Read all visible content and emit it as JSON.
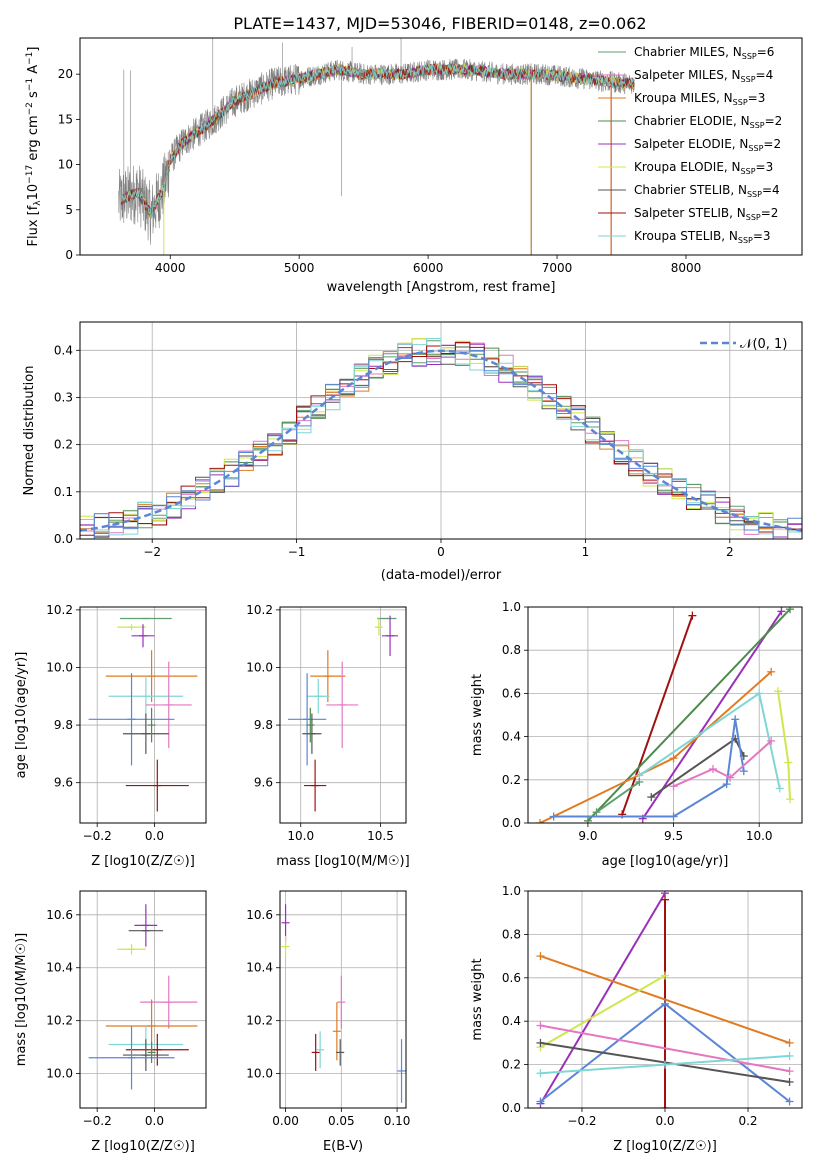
{
  "figure_title": "PLATE=1437, MJD=53046, FIBERID=0148, z=0.062",
  "colors": {
    "chabrier_miles": "#5f9e6e",
    "salpeter_miles": "#e377c2",
    "kroupa_miles": "#e07b20",
    "chabrier_elodie": "#4d8a4d",
    "salpeter_elodie": "#9b30b8",
    "kroupa_elodie": "#cde84d",
    "chabrier_stelib": "#555555",
    "salpeter_stelib": "#a01010",
    "kroupa_stelib": "#7fd6d6",
    "blue": "#5b86d6",
    "spectrum": "#808080",
    "normal_curve": "#5b86d6"
  },
  "chart_data": [
    {
      "id": "spectrum",
      "type": "line",
      "xlabel": "wavelength [Angstrom, rest frame]",
      "ylabel": "Flux [f_λ 10^-17 erg cm^-2 s^-1 A^-1]",
      "xlim": [
        3300,
        8900
      ],
      "ylim": [
        0,
        24
      ],
      "xticks": [
        4000,
        5000,
        6000,
        7000,
        8000
      ],
      "yticks": [
        0,
        5,
        10,
        15,
        20
      ],
      "grid": false,
      "legend_position": "upper-right",
      "legend": [
        {
          "name": "Chabrier MILES",
          "n": "6",
          "color_key": "chabrier_miles"
        },
        {
          "name": "Salpeter MILES",
          "n": "4",
          "color_key": "salpeter_miles"
        },
        {
          "name": "Kroupa MILES",
          "n": "3",
          "color_key": "kroupa_miles"
        },
        {
          "name": "Chabrier ELODIE",
          "n": "2",
          "color_key": "chabrier_elodie"
        },
        {
          "name": "Salpeter ELODIE",
          "n": "2",
          "color_key": "salpeter_elodie"
        },
        {
          "name": "Kroupa ELODIE",
          "n": "3",
          "color_key": "kroupa_elodie"
        },
        {
          "name": "Chabrier STELIB",
          "n": "4",
          "color_key": "chabrier_stelib"
        },
        {
          "name": "Salpeter STELIB",
          "n": "2",
          "color_key": "salpeter_stelib"
        },
        {
          "name": "Kroupa STELIB",
          "n": "3",
          "color_key": "kroupa_stelib"
        }
      ],
      "continuum": {
        "x": [
          3600,
          3750,
          3850,
          3950,
          4000,
          4100,
          4300,
          4500,
          4800,
          5000,
          5300,
          5500,
          5800,
          6000,
          6300,
          6600,
          6900,
          7200,
          7500,
          7600
        ],
        "y": [
          6,
          7,
          4.5,
          7.5,
          10.5,
          12.5,
          14.5,
          17,
          19,
          19.5,
          20.5,
          20,
          20,
          20.5,
          20.5,
          20,
          20,
          19.5,
          19,
          19
        ]
      }
    },
    {
      "id": "residuals",
      "type": "histogram",
      "xlabel": "(data-model)/error",
      "ylabel": "Normed distribution",
      "xlim": [
        -2.5,
        2.5
      ],
      "ylim": [
        0,
        0.46
      ],
      "xticks": [
        -2,
        -1,
        0,
        1,
        2
      ],
      "yticks": [
        0.0,
        0.1,
        0.2,
        0.3,
        0.4
      ],
      "grid": true,
      "legend_position": "upper-right",
      "legend_label": "𝒩(0, 1)",
      "bin_width": 0.1
    },
    {
      "id": "age_vs_Z",
      "type": "scatter",
      "xlabel": "Z [log10(Z/Z☉)]",
      "ylabel": "age  [log10(age/yr)]",
      "xlim": [
        -0.26,
        0.18
      ],
      "ylim": [
        9.46,
        10.21
      ],
      "xticks": [
        -0.2,
        0.0
      ],
      "yticks": [
        9.6,
        9.8,
        10.0,
        10.2
      ],
      "grid": true,
      "points": [
        {
          "color_key": "chabrier_miles",
          "x": -0.03,
          "y": 10.17,
          "xerr": 0.09,
          "yerr": 0.0
        },
        {
          "color_key": "kroupa_elodie",
          "x": -0.08,
          "y": 10.14,
          "xerr": 0.05,
          "yerr": 0.01
        },
        {
          "color_key": "salpeter_elodie",
          "x": -0.04,
          "y": 10.11,
          "xerr": 0.04,
          "yerr": 0.04
        },
        {
          "color_key": "kroupa_miles",
          "x": -0.01,
          "y": 9.97,
          "xerr": 0.16,
          "yerr": 0.09
        },
        {
          "color_key": "kroupa_stelib",
          "x": -0.03,
          "y": 9.9,
          "xerr": 0.13,
          "yerr": 0.07
        },
        {
          "color_key": "salpeter_miles",
          "x": 0.05,
          "y": 9.87,
          "xerr": 0.08,
          "yerr": 0.15
        },
        {
          "color_key": "blue",
          "x": -0.08,
          "y": 9.82,
          "xerr": 0.15,
          "yerr": 0.16
        },
        {
          "color_key": "chabrier_stelib",
          "x": -0.03,
          "y": 9.77,
          "xerr": 0.08,
          "yerr": 0.07
        },
        {
          "color_key": "chabrier_elodie",
          "x": -0.01,
          "y": 9.8,
          "xerr": 0.0,
          "yerr": 0.06
        },
        {
          "color_key": "salpeter_stelib",
          "x": 0.01,
          "y": 9.59,
          "xerr": 0.11,
          "yerr": 0.09
        }
      ]
    },
    {
      "id": "age_vs_mass",
      "type": "scatter",
      "xlabel": "mass [log10(M/M☉)]",
      "ylabel": "",
      "xlim": [
        9.87,
        10.66
      ],
      "ylim": [
        9.46,
        10.21
      ],
      "xticks": [
        10.0,
        10.5
      ],
      "yticks": [
        9.6,
        9.8,
        10.0,
        10.2
      ],
      "grid": true,
      "points": [
        {
          "color_key": "chabrier_miles",
          "x": 10.54,
          "y": 10.17,
          "xerr": 0.06,
          "yerr": 0.0
        },
        {
          "color_key": "kroupa_elodie",
          "x": 10.49,
          "y": 10.14,
          "xerr": 0.02,
          "yerr": 0.03
        },
        {
          "color_key": "salpeter_elodie",
          "x": 10.56,
          "y": 10.11,
          "xerr": 0.05,
          "yerr": 0.07
        },
        {
          "color_key": "kroupa_miles",
          "x": 10.17,
          "y": 9.97,
          "xerr": 0.11,
          "yerr": 0.09
        },
        {
          "color_key": "kroupa_stelib",
          "x": 10.11,
          "y": 9.9,
          "xerr": 0.07,
          "yerr": 0.06
        },
        {
          "color_key": "salpeter_miles",
          "x": 10.26,
          "y": 9.87,
          "xerr": 0.1,
          "yerr": 0.15
        },
        {
          "color_key": "blue",
          "x": 10.04,
          "y": 9.82,
          "xerr": 0.12,
          "yerr": 0.16
        },
        {
          "color_key": "chabrier_stelib",
          "x": 10.07,
          "y": 9.77,
          "xerr": 0.06,
          "yerr": 0.07
        },
        {
          "color_key": "chabrier_elodie",
          "x": 10.06,
          "y": 9.8,
          "xerr": 0.0,
          "yerr": 0.06
        },
        {
          "color_key": "salpeter_stelib",
          "x": 10.09,
          "y": 9.59,
          "xerr": 0.07,
          "yerr": 0.09
        }
      ]
    },
    {
      "id": "weight_vs_age",
      "type": "line",
      "xlabel": "age  [log10(age/yr)]",
      "ylabel": "mass weight",
      "xlim": [
        8.65,
        10.25
      ],
      "ylim": [
        0,
        1
      ],
      "xticks": [
        9.0,
        9.5,
        10.0
      ],
      "yticks": [
        0.0,
        0.2,
        0.4,
        0.6,
        0.8,
        1.0
      ],
      "grid": true,
      "series": [
        {
          "color_key": "salpeter_stelib",
          "x": [
            9.2,
            9.61
          ],
          "y": [
            0.04,
            0.96
          ]
        },
        {
          "color_key": "salpeter_elodie",
          "x": [
            9.32,
            10.13
          ],
          "y": [
            0.02,
            0.98
          ]
        },
        {
          "color_key": "chabrier_elodie",
          "x": [
            9.0,
            10.18
          ],
          "y": [
            0.01,
            0.99
          ]
        },
        {
          "color_key": "kroupa_miles",
          "x": [
            8.72,
            9.5,
            10.07
          ],
          "y": [
            0.0,
            0.3,
            0.7
          ]
        },
        {
          "color_key": "kroupa_elodie",
          "x": [
            10.11,
            10.17,
            10.18
          ],
          "y": [
            0.61,
            0.28,
            0.11
          ]
        },
        {
          "color_key": "kroupa_stelib",
          "x": [
            9.3,
            10.0,
            10.12
          ],
          "y": [
            0.22,
            0.6,
            0.16
          ]
        },
        {
          "color_key": "chabrier_stelib",
          "x": [
            9.37,
            9.86,
            9.91
          ],
          "y": [
            0.12,
            0.39,
            0.31
          ]
        },
        {
          "color_key": "blue",
          "x": [
            8.8,
            9.5,
            9.81,
            9.86,
            9.91
          ],
          "y": [
            0.03,
            0.03,
            0.18,
            0.48,
            0.24
          ]
        },
        {
          "color_key": "salpeter_miles",
          "x": [
            9.5,
            9.73,
            9.83,
            10.07
          ],
          "y": [
            0.17,
            0.25,
            0.21,
            0.38
          ]
        },
        {
          "color_key": "chabrier_miles",
          "x": [
            9.05,
            9.3
          ],
          "y": [
            0.05,
            0.19
          ]
        }
      ]
    },
    {
      "id": "mass_vs_Z",
      "type": "scatter",
      "xlabel": "Z [log10(Z/Z☉)]",
      "ylabel": "mass [log10(M/M☉)]",
      "xlim": [
        -0.26,
        0.18
      ],
      "ylim": [
        9.87,
        10.69
      ],
      "xticks": [
        -0.2,
        0.0
      ],
      "yticks": [
        10.0,
        10.2,
        10.4,
        10.6
      ],
      "grid": true,
      "points": [
        {
          "color_key": "salpeter_elodie",
          "x": -0.03,
          "y": 10.56,
          "xerr": 0.04,
          "yerr": 0.08
        },
        {
          "color_key": "chabrier_stelib",
          "x": -0.03,
          "y": 10.54,
          "xerr": 0.06,
          "yerr": 0.0
        },
        {
          "color_key": "kroupa_elodie",
          "x": -0.08,
          "y": 10.47,
          "xerr": 0.05,
          "yerr": 0.02
        },
        {
          "color_key": "salpeter_miles",
          "x": 0.05,
          "y": 10.27,
          "xerr": 0.1,
          "yerr": 0.1
        },
        {
          "color_key": "kroupa_miles",
          "x": -0.01,
          "y": 10.18,
          "xerr": 0.16,
          "yerr": 0.1
        },
        {
          "color_key": "kroupa_stelib",
          "x": -0.03,
          "y": 10.11,
          "xerr": 0.13,
          "yerr": 0.07
        },
        {
          "color_key": "salpeter_stelib",
          "x": 0.01,
          "y": 10.09,
          "xerr": 0.11,
          "yerr": 0.06
        },
        {
          "color_key": "chabrier_stelib",
          "x": -0.03,
          "y": 10.07,
          "xerr": 0.08,
          "yerr": 0.06
        },
        {
          "color_key": "blue",
          "x": -0.08,
          "y": 10.06,
          "xerr": 0.15,
          "yerr": 0.12
        },
        {
          "color_key": "chabrier_elodie",
          "x": -0.01,
          "y": 10.08,
          "xerr": 0.0,
          "yerr": 0.04
        }
      ]
    },
    {
      "id": "mass_vs_EBV",
      "type": "scatter",
      "xlabel": "E(B-V)",
      "ylabel": "",
      "xlim": [
        -0.005,
        0.108
      ],
      "ylim": [
        9.87,
        10.69
      ],
      "xticks": [
        0.0,
        0.05,
        0.1
      ],
      "yticks": [
        10.0,
        10.2,
        10.4,
        10.6
      ],
      "grid": true,
      "points": [
        {
          "color_key": "salpeter_elodie",
          "x": 0.0,
          "y": 10.57,
          "xerr": 0.0,
          "yerr": 0.07
        },
        {
          "color_key": "kroupa_elodie",
          "x": 0.0,
          "y": 10.48,
          "xerr": 0.0,
          "yerr": 0.04
        },
        {
          "color_key": "salpeter_miles",
          "x": 0.05,
          "y": 10.27,
          "xerr": 0.0,
          "yerr": 0.1
        },
        {
          "color_key": "kroupa_miles",
          "x": 0.046,
          "y": 10.16,
          "xerr": 0.0,
          "yerr": 0.11
        },
        {
          "color_key": "chabrier_stelib",
          "x": 0.049,
          "y": 10.08,
          "xerr": 0.0,
          "yerr": 0.05
        },
        {
          "color_key": "salpeter_stelib",
          "x": 0.027,
          "y": 10.08,
          "xerr": 0.0,
          "yerr": 0.07
        },
        {
          "color_key": "kroupa_stelib",
          "x": 0.031,
          "y": 10.09,
          "xerr": 0.0,
          "yerr": 0.07
        },
        {
          "color_key": "blue",
          "x": 0.104,
          "y": 10.01,
          "xerr": 0.0,
          "yerr": 0.12
        }
      ]
    },
    {
      "id": "weight_vs_Z",
      "type": "line",
      "xlabel": "Z [log10(Z/Z☉)]",
      "ylabel": "mass weight",
      "xlim": [
        -0.33,
        0.33
      ],
      "ylim": [
        0,
        1
      ],
      "xticks": [
        -0.2,
        0.0,
        0.2
      ],
      "yticks": [
        0.0,
        0.2,
        0.4,
        0.6,
        0.8,
        1.0
      ],
      "grid": true,
      "series": [
        {
          "color_key": "salpeter_elodie",
          "x": [
            -0.3,
            0.0
          ],
          "y": [
            0.02,
            0.99
          ]
        },
        {
          "color_key": "salpeter_stelib",
          "x": [
            0.0,
            0.0
          ],
          "y": [
            0.0,
            0.96
          ]
        },
        {
          "color_key": "kroupa_miles",
          "x": [
            -0.3,
            0.3
          ],
          "y": [
            0.7,
            0.3
          ]
        },
        {
          "color_key": "kroupa_elodie",
          "x": [
            -0.3,
            0.0
          ],
          "y": [
            0.28,
            0.61
          ]
        },
        {
          "color_key": "blue",
          "x": [
            -0.3,
            0.0,
            0.3
          ],
          "y": [
            0.03,
            0.48,
            0.03
          ]
        },
        {
          "color_key": "salpeter_miles",
          "x": [
            -0.3,
            0.3
          ],
          "y": [
            0.38,
            0.17
          ]
        },
        {
          "color_key": "chabrier_stelib",
          "x": [
            -0.3,
            0.3
          ],
          "y": [
            0.3,
            0.12
          ]
        },
        {
          "color_key": "kroupa_stelib",
          "x": [
            -0.3,
            0.0,
            0.3
          ],
          "y": [
            0.16,
            0.2,
            0.24
          ]
        }
      ]
    }
  ]
}
